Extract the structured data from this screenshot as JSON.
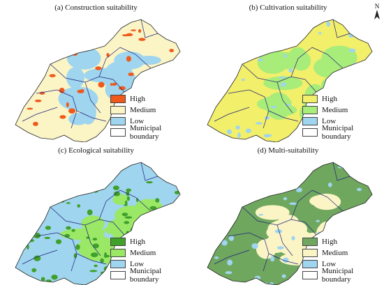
{
  "north_label": "N",
  "boundary_color": "#1f1f7a",
  "panels": [
    {
      "title": "(a) Construction suitability",
      "legend": [
        {
          "label": "High",
          "color": "#ef5a1c"
        },
        {
          "label": "Medium",
          "color": "#fbf5c6"
        },
        {
          "label": "Low",
          "color": "#9fd5ee"
        },
        {
          "label": "Municipal boundary",
          "color": "#ffffff"
        }
      ]
    },
    {
      "title": "(b) Cultivation suitability",
      "legend": [
        {
          "label": "High",
          "color": "#f2ef6b"
        },
        {
          "label": "Medium",
          "color": "#a8ec7a"
        },
        {
          "label": "Low",
          "color": "#9fd5ee"
        },
        {
          "label": "Municipal boundary",
          "color": "#ffffff"
        }
      ]
    },
    {
      "title": "(c) Ecological suitability",
      "legend": [
        {
          "label": "High",
          "color": "#3fa02a"
        },
        {
          "label": "Medium",
          "color": "#9ae866"
        },
        {
          "label": "Low",
          "color": "#9fd5ee"
        },
        {
          "label": "Municipal boundary",
          "color": "#ffffff"
        }
      ]
    },
    {
      "title": "(d) Multi-suitability",
      "legend": [
        {
          "label": "High",
          "color": "#6fa75f"
        },
        {
          "label": "Medium",
          "color": "#fbf5c6"
        },
        {
          "label": "Low",
          "color": "#9fd5ee"
        },
        {
          "label": "Municipal boundary",
          "color": "#ffffff"
        }
      ]
    }
  ]
}
